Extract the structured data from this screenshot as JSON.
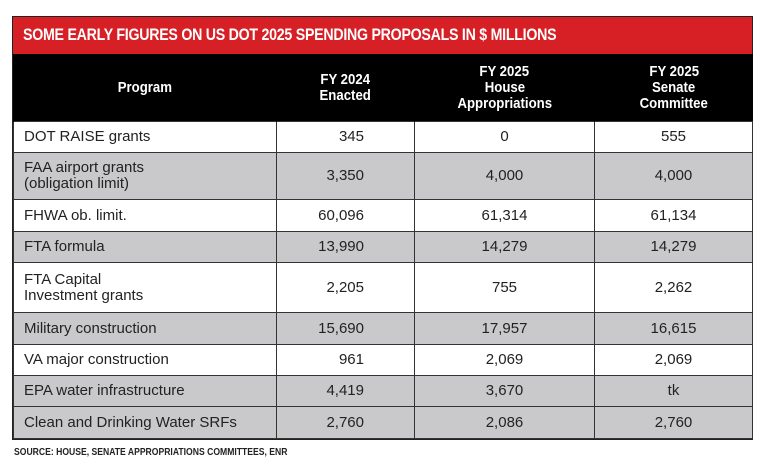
{
  "title": "SOME EARLY FIGURES ON US DOT 2025 SPENDING PROPOSALS IN $ MILLIONS",
  "colors": {
    "title_bar": "#d71f26",
    "header_bg": "#000000",
    "row_gray": "#c9c9cb",
    "row_white": "#ffffff"
  },
  "columns": [
    {
      "line1": "Program",
      "line2": "",
      "line3": ""
    },
    {
      "line1": "FY 2024",
      "line2": "Enacted",
      "line3": ""
    },
    {
      "line1": "FY 2025",
      "line2": "House",
      "line3": "Appropriations"
    },
    {
      "line1": "FY 2025",
      "line2": "Senate",
      "line3": "Committee"
    }
  ],
  "rows": [
    {
      "program_line1": "DOT RAISE grants",
      "program_line2": "",
      "fy2024": "345",
      "house": "0",
      "senate": "555",
      "shade": "white"
    },
    {
      "program_line1": "FAA airport grants",
      "program_line2": "(obligation limit)",
      "fy2024": "3,350",
      "house": "4,000",
      "senate": "4,000",
      "shade": "gray"
    },
    {
      "program_line1": "FHWA ob. limit.",
      "program_line2": "",
      "fy2024": "60,096",
      "house": "61,314",
      "senate": "61,134",
      "shade": "white"
    },
    {
      "program_line1": "FTA formula",
      "program_line2": "",
      "fy2024": "13,990",
      "house": "14,279",
      "senate": "14,279",
      "shade": "gray"
    },
    {
      "program_line1": "FTA Capital",
      "program_line2": "Investment grants",
      "fy2024": "2,205",
      "house": "755",
      "senate": "2,262",
      "shade": "white"
    },
    {
      "program_line1": "Military construction",
      "program_line2": "",
      "fy2024": "15,690",
      "house": "17,957",
      "senate": "16,615",
      "shade": "gray"
    },
    {
      "program_line1": "VA major construction",
      "program_line2": "",
      "fy2024": "961",
      "house": "2,069",
      "senate": "2,069",
      "shade": "white"
    },
    {
      "program_line1": "EPA water infrastructure",
      "program_line2": "",
      "fy2024": "4,419",
      "house": "3,670",
      "senate": "tk",
      "shade": "gray"
    },
    {
      "program_line1": "Clean and Drinking Water SRFs",
      "program_line2": "",
      "fy2024": "2,760",
      "house": "2,086",
      "senate": "2,760",
      "shade": "gray"
    }
  ],
  "source": "SOURCE: HOUSE, SENATE APPROPRIATIONS COMMITTEES, ENR"
}
